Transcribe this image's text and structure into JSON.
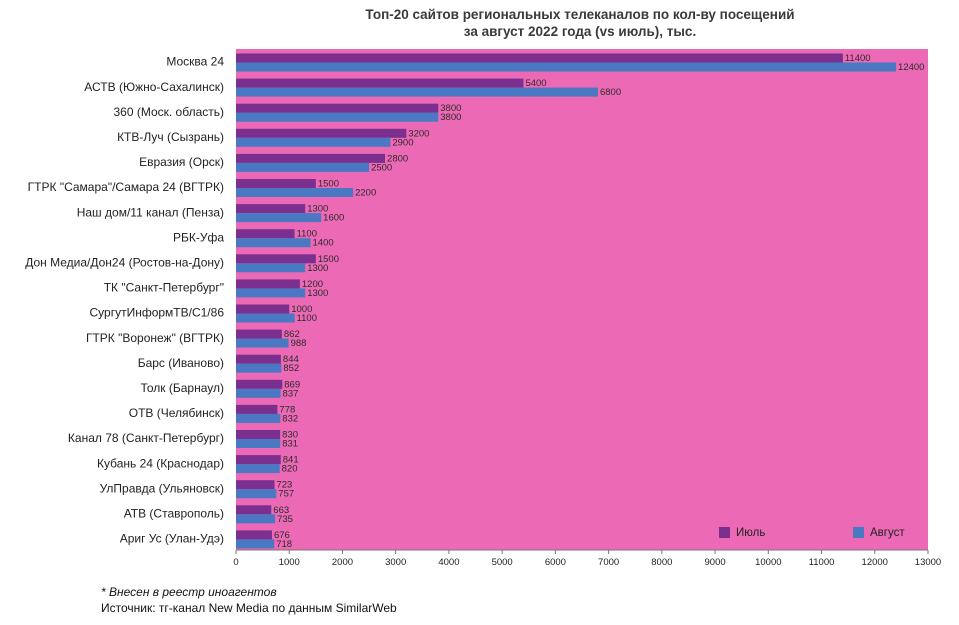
{
  "chart_data": {
    "type": "bar",
    "orientation": "horizontal",
    "title_line1": "Топ-20 сайтов региональных телеканалов по кол-ву посещений",
    "title_line2": "за август 2022 года (vs июль), тыс.",
    "categories": [
      "Москва 24",
      "АСТВ (Южно-Сахалинск)",
      "360 (Моск. область)",
      "КТВ-Луч (Сызрань)",
      "Евразия (Орск)",
      "ГТРК \"Самара\"/Самара 24 (ВГТРК)",
      "Наш дом/11 канал (Пенза)",
      "РБК-Уфа",
      "Дон Медиа/Дон24 (Ростов-на-Дону)",
      "ТК \"Санкт-Петербург\"",
      "СургутИнформТВ/С1/86",
      "ГТРК \"Воронеж\" (ВГТРК)",
      "Барс (Иваново)",
      "Толк (Барнаул)",
      "ОТВ (Челябинск)",
      "Канал 78 (Санкт-Петербург)",
      "Кубань 24 (Краснодар)",
      "УлПравда (Ульяновск)",
      "АТВ (Ставрополь)",
      "Ариг Ус (Улан-Удэ)"
    ],
    "series": [
      {
        "name": "Июль",
        "color": "#7b2f8e",
        "values": [
          11400,
          5400,
          3800,
          3200,
          2800,
          1500,
          1300,
          1100,
          1500,
          1200,
          1000,
          862,
          844,
          869,
          778,
          830,
          841,
          723,
          663,
          676
        ]
      },
      {
        "name": "Август",
        "color": "#4a78c2",
        "values": [
          12400,
          6800,
          3800,
          2900,
          2500,
          2200,
          1600,
          1400,
          1300,
          1300,
          1100,
          988,
          852,
          837,
          832,
          831,
          820,
          757,
          735,
          718
        ]
      }
    ],
    "xlim": [
      0,
      13000
    ],
    "xticks": [
      0,
      1000,
      2000,
      3000,
      4000,
      5000,
      6000,
      7000,
      8000,
      9000,
      10000,
      11000,
      12000,
      13000
    ],
    "plot_background": "#ec69b5",
    "legend_position": "bottom-right",
    "grid": false
  },
  "footnote": "* Внесен в реестр иноагентов",
  "source": "Источник: тг-канал New Media по данным SimilarWeb"
}
